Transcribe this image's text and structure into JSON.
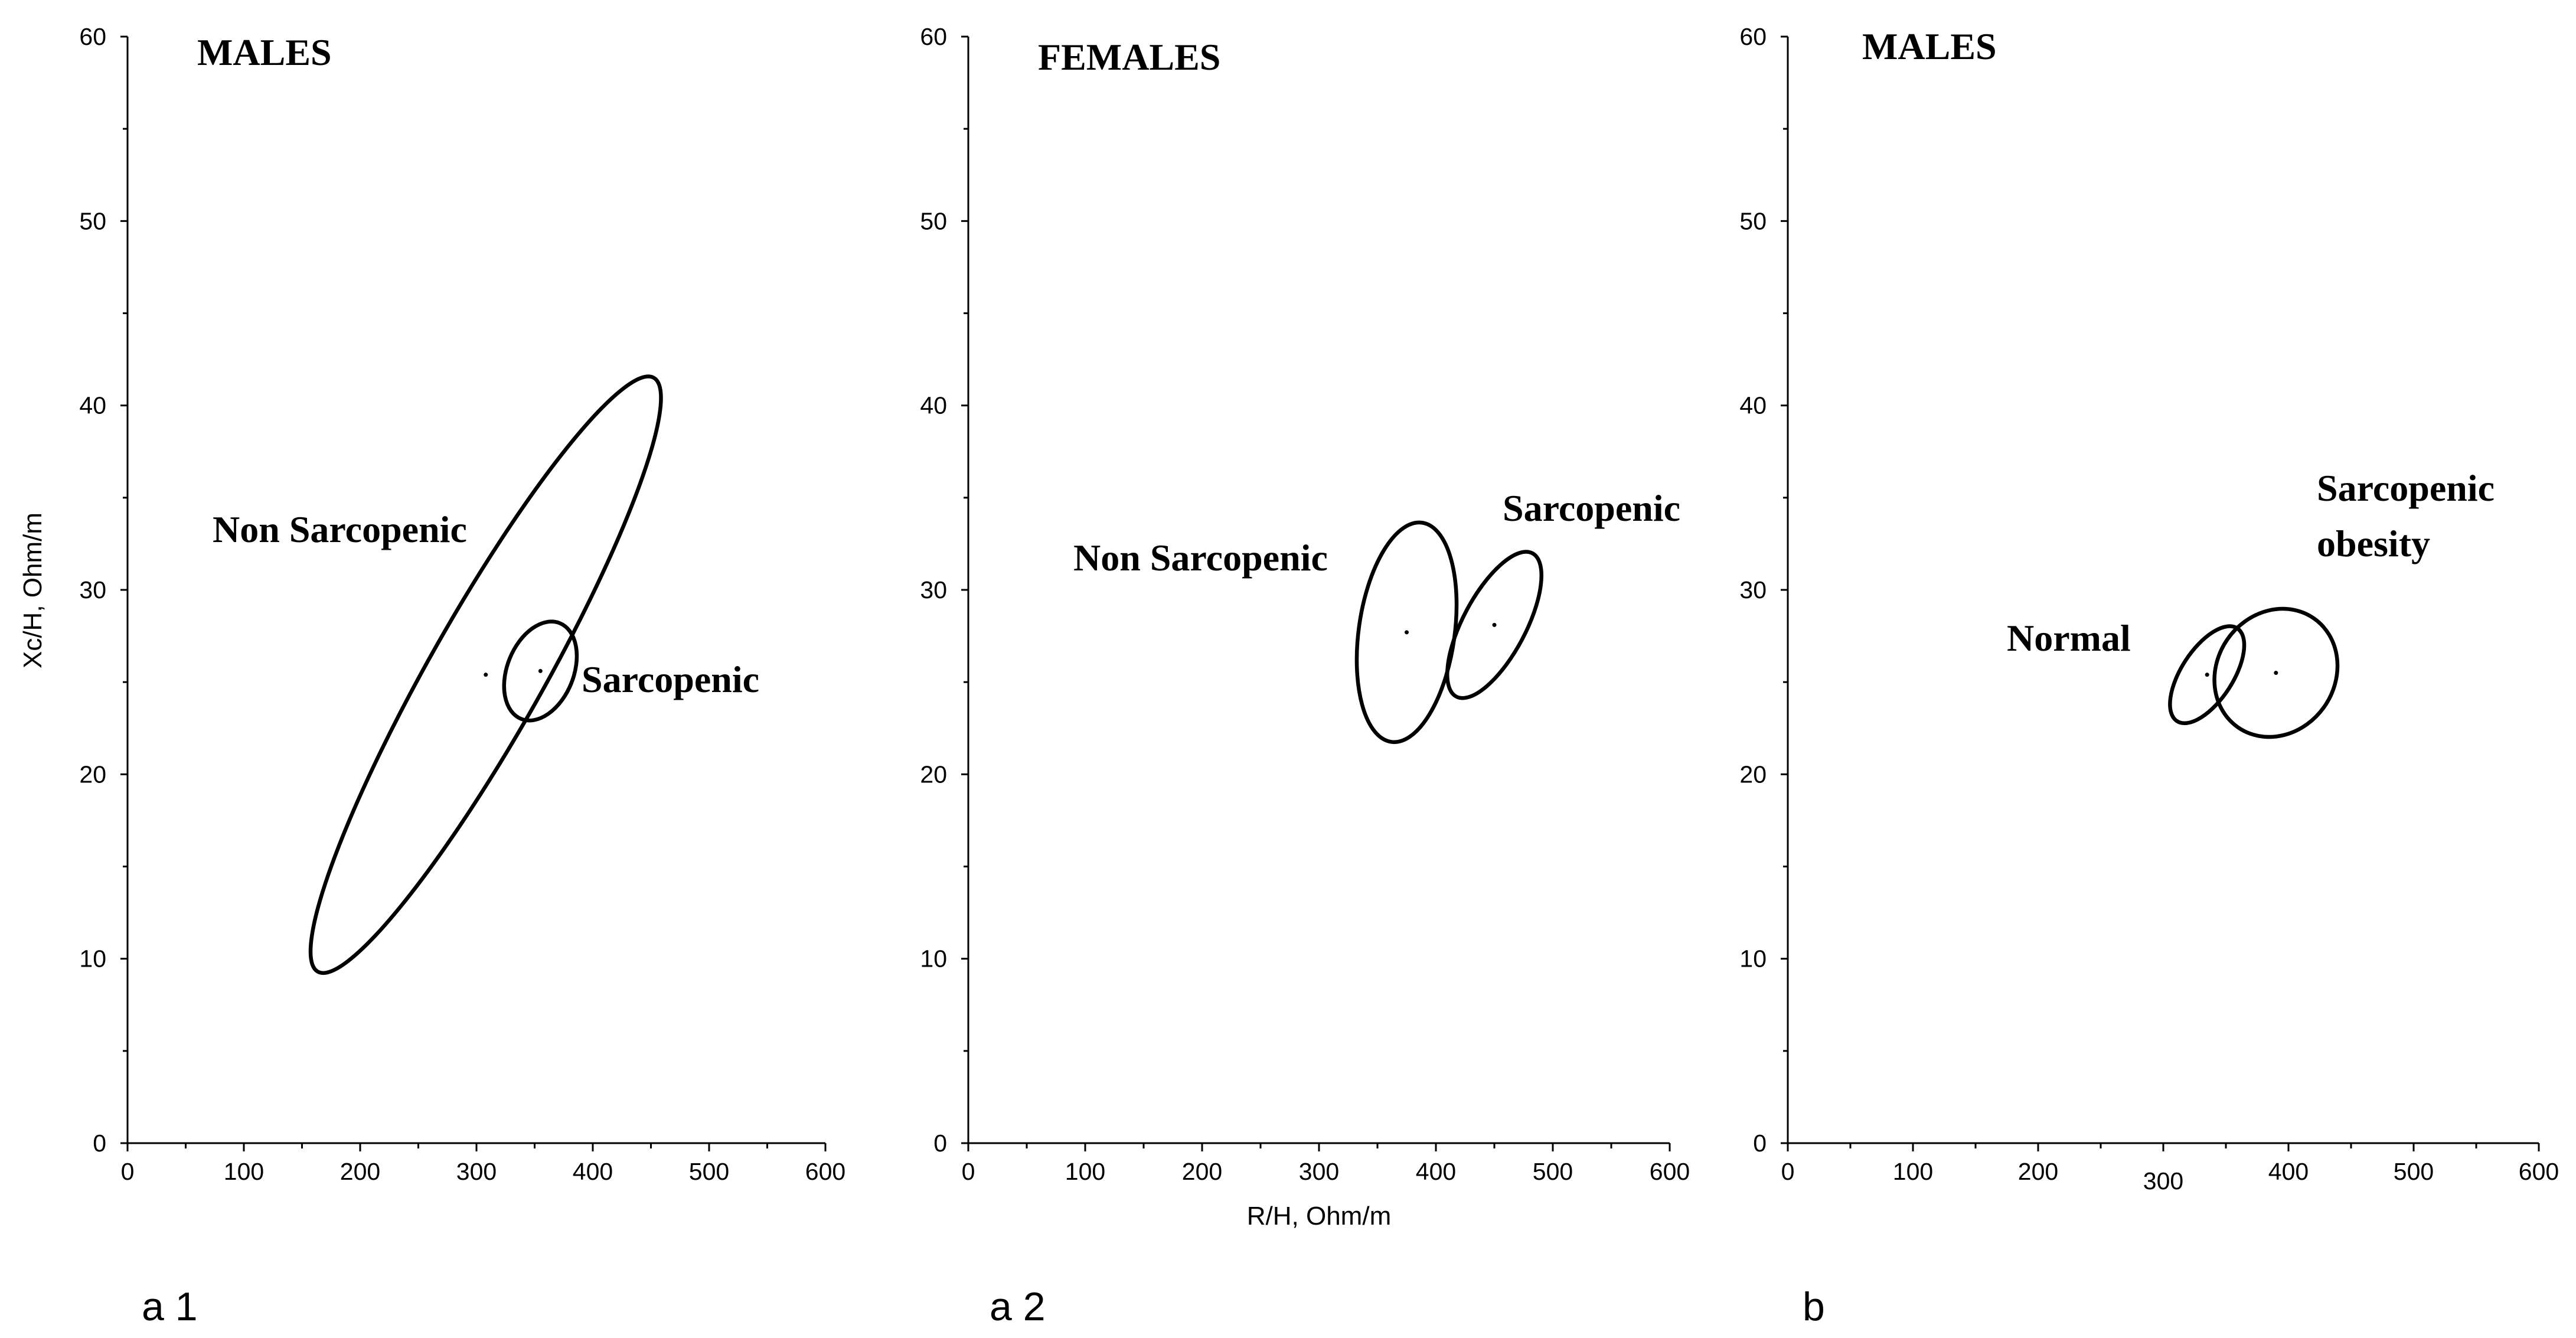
{
  "chart_data": [
    {
      "type": "scatter",
      "panel_label": "a 1",
      "title": "MALES",
      "xlabel": "",
      "ylabel": "Xc/H, Ohm/m",
      "xlim": [
        0,
        600
      ],
      "ylim": [
        0,
        60
      ],
      "xticks": [
        "0",
        "100",
        "200",
        "300",
        "400",
        "500",
        "600"
      ],
      "yticks": [
        "0",
        "10",
        "20",
        "30",
        "40",
        "50",
        "60"
      ],
      "grid": false,
      "series": [
        {
          "name": "Non Sarcopenic",
          "center": [
            308,
            25.4
          ],
          "semi_major": 18.5,
          "semi_minor": 3.1,
          "angle_deg": 60.5
        },
        {
          "name": "Sarcopenic",
          "center": [
            355,
            25.6
          ],
          "semi_major": 2.8,
          "semi_minor": 1.8,
          "angle_deg": 68
        }
      ]
    },
    {
      "type": "scatter",
      "panel_label": "a 2",
      "title": "FEMALES",
      "xlabel": "R/H, Ohm/m",
      "ylabel": "",
      "xlim": [
        0,
        600
      ],
      "ylim": [
        0,
        60
      ],
      "xticks": [
        "0",
        "100",
        "200",
        "300",
        "400",
        "500",
        "600"
      ],
      "yticks": [
        "0",
        "10",
        "20",
        "30",
        "40",
        "50",
        "60"
      ],
      "grid": false,
      "series": [
        {
          "name": "Non Sarcopenic",
          "center": [
            375,
            27.7
          ],
          "semi_major": 6.0,
          "semi_minor": 2.6,
          "angle_deg": 82
        },
        {
          "name": "Sarcopenic",
          "center": [
            450,
            28.1
          ],
          "semi_major": 4.4,
          "semi_minor": 1.7,
          "angle_deg": 62
        }
      ]
    },
    {
      "type": "scatter",
      "panel_label": "b",
      "title": "MALES",
      "xlabel": "",
      "ylabel": "",
      "xlim": [
        0,
        600
      ],
      "ylim": [
        0,
        60
      ],
      "xticks": [
        "0",
        "100",
        "200",
        "300",
        "400",
        "500",
        "600"
      ],
      "yticks": [
        "0",
        "10",
        "20",
        "30",
        "40",
        "50",
        "60"
      ],
      "grid": false,
      "series": [
        {
          "name": "Normal",
          "center": [
            335,
            25.4
          ],
          "semi_major": 3.0,
          "semi_minor": 1.4,
          "angle_deg": 57
        },
        {
          "name": "Sarcopenic obesity",
          "center": [
            390,
            25.5
          ],
          "semi_major": 3.6,
          "semi_minor": 3.2,
          "angle_deg": 55
        }
      ]
    }
  ]
}
